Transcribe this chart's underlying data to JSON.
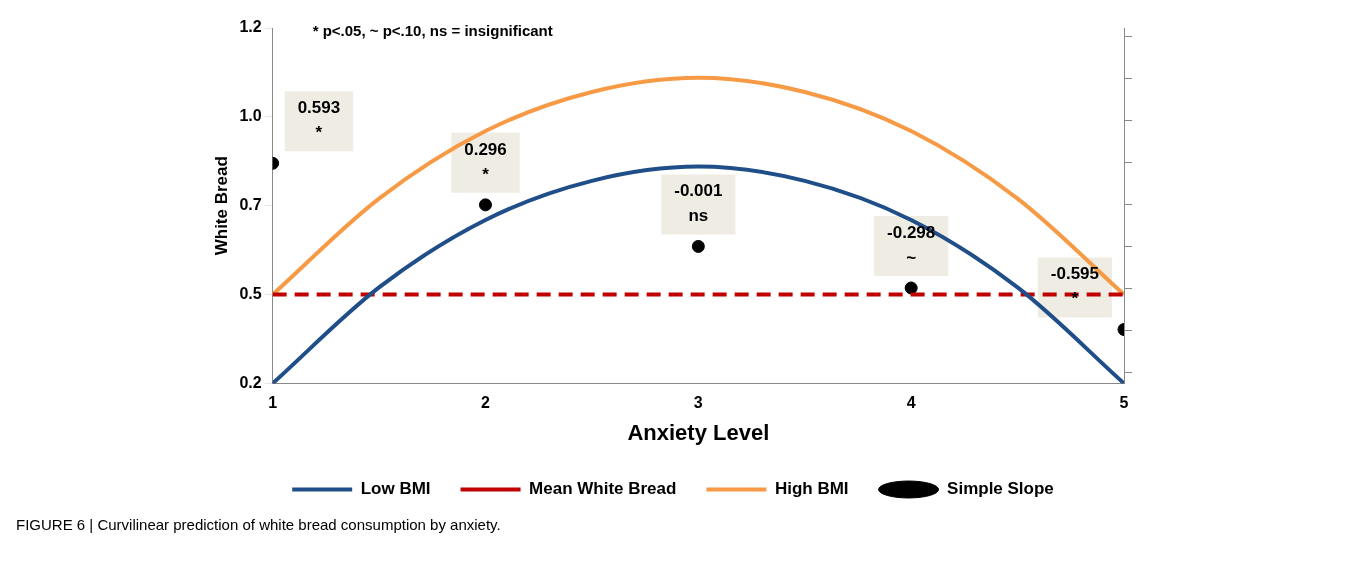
{
  "chart_data": {
    "type": "line",
    "xlabel": "Anxiety Level",
    "ylabel": "White Bread",
    "x": [
      1,
      1.5,
      2,
      2.5,
      3,
      3.5,
      4,
      4.5,
      5
    ],
    "xlim": [
      1,
      5
    ],
    "xticks": [
      1,
      2,
      3,
      4,
      5
    ],
    "ylim": [
      0.2,
      1.2
    ],
    "yticks": [
      0.2,
      {
        "value": 0.45,
        "label": "0.5"
      },
      0.7,
      {
        "value": 0.95,
        "label": "1.0"
      },
      1.2
    ],
    "y2lim": [
      -0.98,
      1.56
    ],
    "y2ticks": [
      {
        "value": -0.9,
        "label": null
      },
      {
        "value": -0.6,
        "label": null
      },
      {
        "value": -0.3,
        "label": null
      },
      {
        "value": 0,
        "label": null
      },
      {
        "value": 0.3,
        "label": null
      },
      {
        "value": 0.6,
        "label": null
      },
      {
        "value": 0.9,
        "label": null
      },
      {
        "value": 1.2,
        "label": null
      },
      {
        "value": 1.5,
        "label": null
      }
    ],
    "grid": false,
    "legend": "bottom",
    "series": [
      {
        "name": "Low BMI",
        "color": "#1f4e89",
        "marker": "none",
        "values": [
          0.2,
          0.47,
          0.66,
          0.77,
          0.81,
          0.77,
          0.66,
          0.47,
          0.2
        ]
      },
      {
        "name": "Mean White Bread",
        "color": "#c00000",
        "marker": "none",
        "line_style": "dashed",
        "values": [
          0.45,
          0.45,
          0.45,
          0.45,
          0.45,
          0.45,
          0.45,
          0.45,
          0.45
        ]
      },
      {
        "name": "High BMI",
        "color": "#f79a46",
        "marker": "none",
        "values": [
          0.45,
          0.72,
          0.91,
          1.02,
          1.06,
          1.02,
          0.91,
          0.72,
          0.45
        ]
      },
      {
        "name": "Simple Slope",
        "type": "scatter",
        "color": "#000000",
        "marker": "circle",
        "axis": "y2",
        "x": [
          1,
          2,
          3,
          4,
          5
        ],
        "values": [
          0.593,
          0.296,
          -0.001,
          -0.298,
          -0.595
        ],
        "value_labels": [
          "0.593\n*",
          "0.296\n*",
          "-0.001\nns",
          "-0.298\n~",
          "-0.595\n*"
        ]
      }
    ],
    "annotations": [
      "* p<.05, ~ p<.10, ns = insignificant",
      "FIGURE 6 | Curvilinear prediction of white bread consumption by anxiety."
    ]
  }
}
